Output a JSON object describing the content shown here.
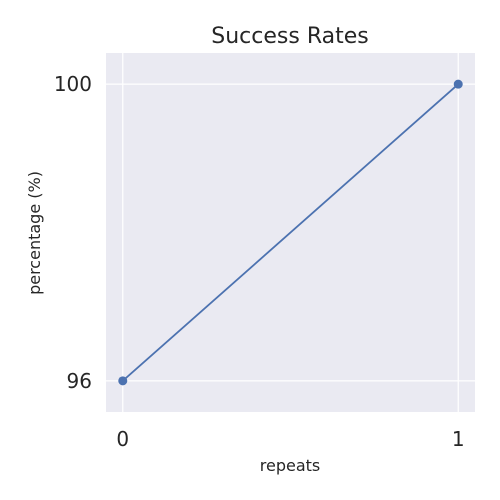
{
  "chart_data": {
    "type": "line",
    "title": "Success Rates",
    "xlabel": "repeats",
    "ylabel": "percentage (%)",
    "x": [
      0,
      1
    ],
    "xlim": [
      -0.05,
      1.05
    ],
    "ylim": [
      95.58,
      100.42
    ],
    "xticks": [
      0,
      1
    ],
    "yticks": [
      96,
      100
    ],
    "xtick_labels": [
      "0",
      "1"
    ],
    "ytick_labels": [
      "96",
      "100"
    ],
    "grid": true,
    "background_color": "#eaeaf2",
    "grid_color": "#ffffff",
    "series": [
      {
        "values": [
          96,
          100
        ],
        "color": "#4c72b0",
        "marker": "circle"
      }
    ]
  }
}
